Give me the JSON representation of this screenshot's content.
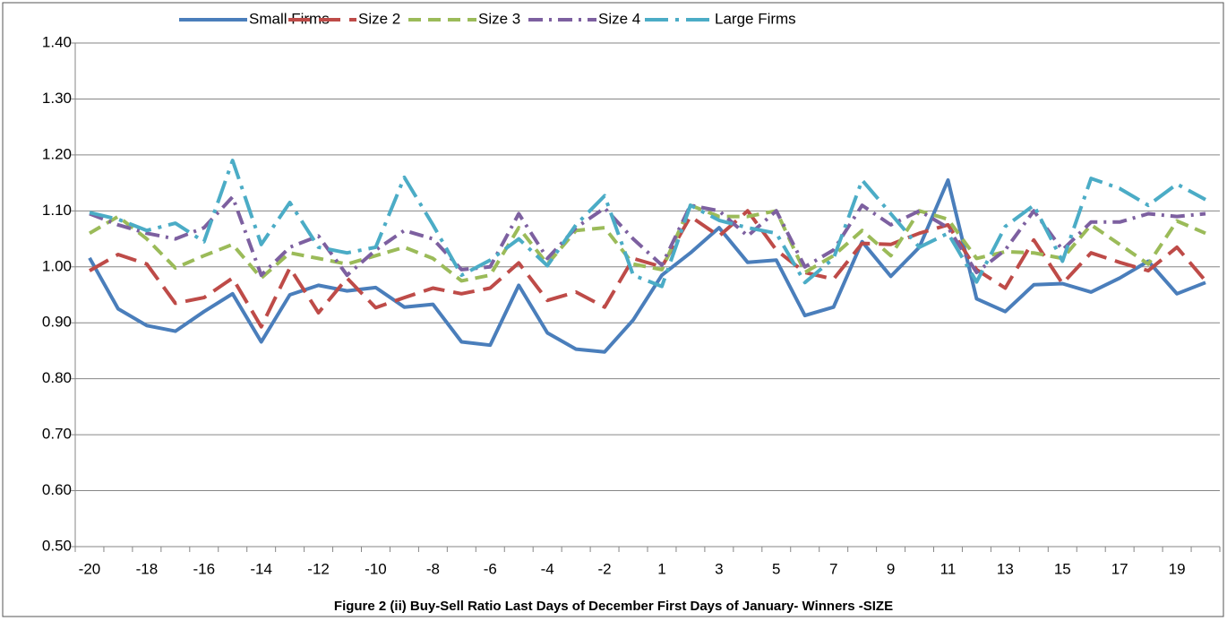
{
  "chart_data": {
    "type": "line",
    "caption": "Figure 2 (ii) Buy-Sell Ratio Last Days of December First Days of January- Winners -SIZE",
    "categories": [
      -20,
      null,
      -18,
      null,
      -16,
      null,
      -14,
      null,
      -12,
      null,
      -10,
      null,
      -8,
      null,
      -6,
      null,
      -4,
      null,
      -2,
      null,
      1,
      null,
      3,
      null,
      5,
      null,
      7,
      null,
      9,
      null,
      11,
      null,
      13,
      null,
      15,
      null,
      17,
      null,
      19,
      null
    ],
    "ylim": [
      0.5,
      1.4
    ],
    "yticks": [
      {
        "value": 0.5,
        "label": "0.50"
      },
      {
        "value": 0.6,
        "label": "0.60"
      },
      {
        "value": 0.7,
        "label": "0.70"
      },
      {
        "value": 0.8,
        "label": "0.80"
      },
      {
        "value": 0.9,
        "label": "0.90"
      },
      {
        "value": 1.0,
        "label": "1.00"
      },
      {
        "value": 1.1,
        "label": "1.10"
      },
      {
        "value": 1.2,
        "label": "1.20"
      },
      {
        "value": 1.3,
        "label": "1.30"
      },
      {
        "value": 1.4,
        "label": "1.40"
      }
    ],
    "grid": true,
    "legend": "top",
    "series": [
      {
        "name": "Small Firms",
        "color": "#4a7ebb",
        "dash": "solid",
        "values": [
          1.016,
          0.925,
          0.895,
          0.885,
          0.92,
          0.952,
          0.866,
          0.95,
          0.967,
          0.957,
          0.963,
          0.928,
          0.933,
          0.866,
          0.86,
          0.967,
          0.882,
          0.853,
          0.848,
          0.905,
          0.985,
          1.025,
          1.07,
          1.008,
          1.012,
          0.913,
          0.928,
          1.045,
          0.983,
          1.035,
          1.155,
          0.943,
          0.92,
          0.968,
          0.97,
          0.955,
          0.98,
          1.01,
          0.952,
          0.972
        ]
      },
      {
        "name": "Size 2",
        "color": "#be4b48",
        "dash": "long-dash",
        "values": [
          0.993,
          1.022,
          1.005,
          0.935,
          0.945,
          0.98,
          0.893,
          0.998,
          0.918,
          0.98,
          0.927,
          0.945,
          0.962,
          0.952,
          0.962,
          1.007,
          0.94,
          0.955,
          0.928,
          1.015,
          1.0,
          1.09,
          1.055,
          1.1,
          1.03,
          0.99,
          0.978,
          1.042,
          1.04,
          1.06,
          1.075,
          0.995,
          0.962,
          1.048,
          0.97,
          1.025,
          1.008,
          0.993,
          1.035,
          0.975
        ]
      },
      {
        "name": "Size 3",
        "color": "#9bbb59",
        "dash": "dash",
        "values": [
          1.06,
          1.09,
          1.05,
          0.998,
          1.02,
          1.04,
          0.98,
          1.025,
          1.015,
          1.005,
          1.02,
          1.035,
          1.015,
          0.975,
          0.985,
          1.07,
          1.005,
          1.065,
          1.07,
          1.005,
          0.995,
          1.11,
          1.09,
          1.09,
          1.1,
          0.99,
          1.02,
          1.065,
          1.02,
          1.1,
          1.085,
          1.015,
          1.027,
          1.025,
          1.015,
          1.075,
          1.04,
          1.005,
          1.082,
          1.06
        ]
      },
      {
        "name": "Size 4",
        "color": "#7d60a0",
        "dash": "dash-dot",
        "values": [
          1.095,
          1.075,
          1.06,
          1.05,
          1.07,
          1.125,
          0.985,
          1.035,
          1.055,
          0.985,
          1.03,
          1.065,
          1.05,
          0.995,
          1.0,
          1.095,
          1.015,
          1.07,
          1.105,
          1.05,
          1.003,
          1.11,
          1.1,
          1.055,
          1.1,
          1.0,
          1.03,
          1.11,
          1.075,
          1.1,
          1.07,
          0.99,
          1.03,
          1.1,
          1.03,
          1.08,
          1.08,
          1.095,
          1.09,
          1.095
        ]
      },
      {
        "name": "Large Firms",
        "color": "#4bacc6",
        "dash": "long-dash-dot",
        "values": [
          1.097,
          1.085,
          1.065,
          1.078,
          1.045,
          1.19,
          1.04,
          1.115,
          1.035,
          1.025,
          1.035,
          1.16,
          1.075,
          0.985,
          1.012,
          1.05,
          1.002,
          1.075,
          1.127,
          0.985,
          0.965,
          1.11,
          1.083,
          1.07,
          1.06,
          0.972,
          1.015,
          1.155,
          1.095,
          1.035,
          1.06,
          0.973,
          1.072,
          1.11,
          1.01,
          1.158,
          1.14,
          1.11,
          1.148,
          1.12
        ]
      }
    ]
  }
}
